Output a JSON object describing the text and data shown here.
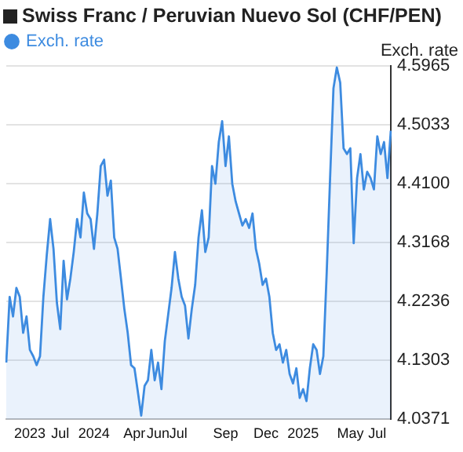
{
  "chart_data": {
    "type": "area",
    "title": "Swiss Franc / Peruvian Nuevo Sol (CHF/PEN)",
    "ylabel": "Exch. rate",
    "categories": [
      null,
      null,
      null,
      null,
      null,
      null,
      null,
      "2023",
      null,
      null,
      null,
      null,
      null,
      null,
      null,
      null,
      "Jul",
      null,
      null,
      null,
      null,
      null,
      null,
      null,
      null,
      null,
      "2024",
      null,
      null,
      null,
      null,
      null,
      null,
      null,
      null,
      null,
      null,
      null,
      "Apr",
      null,
      null,
      null,
      null,
      null,
      null,
      "Jun",
      null,
      null,
      null,
      null,
      null,
      "Jul",
      null,
      null,
      null,
      null,
      null,
      null,
      null,
      null,
      null,
      null,
      null,
      null,
      null,
      "Sep",
      null,
      null,
      null,
      null,
      null,
      null,
      null,
      null,
      null,
      null,
      null,
      "Dec",
      null,
      null,
      null,
      null,
      null,
      null,
      null,
      null,
      null,
      null,
      "2025",
      null,
      null,
      null,
      null,
      null,
      null,
      null,
      null,
      null,
      null,
      null,
      null,
      null,
      "May",
      null,
      null,
      null,
      null,
      null,
      null,
      null,
      "Jul",
      null,
      null,
      null,
      null
    ],
    "series": [
      {
        "name": "Exch. rate",
        "color": "#3d8be0",
        "values": [
          4.127,
          4.231,
          4.2,
          4.245,
          4.231,
          4.174,
          4.2,
          4.147,
          4.137,
          4.123,
          4.137,
          4.231,
          4.297,
          4.354,
          4.307,
          4.222,
          4.18,
          4.288,
          4.227,
          4.26,
          4.302,
          4.354,
          4.325,
          4.396,
          4.363,
          4.354,
          4.307,
          4.363,
          4.438,
          4.448,
          4.391,
          4.415,
          4.325,
          4.307,
          4.26,
          4.212,
          4.174,
          4.123,
          4.118,
          4.081,
          4.043,
          4.09,
          4.099,
          4.147,
          4.099,
          4.127,
          4.085,
          4.161,
          4.203,
          4.245,
          4.302,
          4.26,
          4.231,
          4.217,
          4.165,
          4.212,
          4.25,
          4.325,
          4.368,
          4.302,
          4.325,
          4.438,
          4.41,
          4.476,
          4.509,
          4.438,
          4.485,
          4.41,
          4.382,
          4.363,
          4.344,
          4.354,
          4.34,
          4.363,
          4.307,
          4.283,
          4.25,
          4.26,
          4.231,
          4.174,
          4.147,
          4.156,
          4.127,
          4.147,
          4.109,
          4.094,
          4.118,
          4.071,
          4.085,
          4.066,
          4.118,
          4.156,
          4.147,
          4.109,
          4.137,
          4.27,
          4.419,
          4.561,
          4.594,
          4.57,
          4.466,
          4.457,
          4.466,
          4.316,
          4.419,
          4.457,
          4.401,
          4.429,
          4.419,
          4.401,
          4.485,
          4.457,
          4.476,
          4.419,
          4.494
        ]
      }
    ],
    "ylim": [
      4.0371,
      4.5965
    ],
    "yticks": [
      4.0371,
      4.1303,
      4.2236,
      4.3168,
      {
        "value": 4.41,
        "label": "4.4100"
      },
      4.5033,
      4.5965
    ],
    "grid": "y",
    "legend": "top left",
    "marker": "none"
  }
}
